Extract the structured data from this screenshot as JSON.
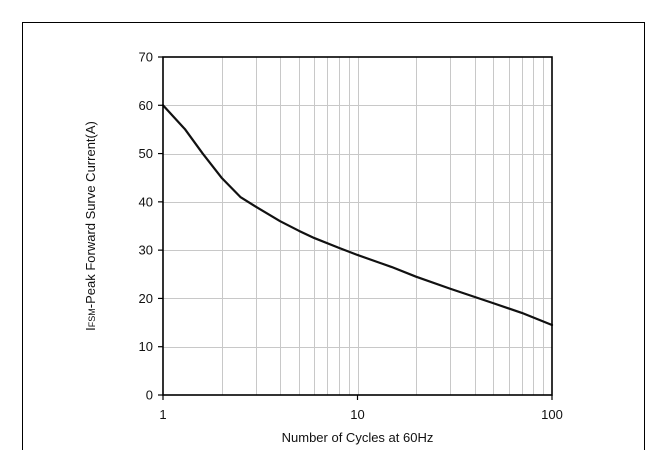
{
  "chart_data": {
    "type": "line",
    "title": "",
    "xlabel": "Number of Cycles at 60Hz",
    "ylabel_main": "I",
    "ylabel_sub": "FSM",
    "ylabel_rest": "-Peak Forward Surve Current(A)",
    "x_scale": "log",
    "xlim": [
      1,
      100
    ],
    "ylim": [
      0,
      70
    ],
    "x_ticks": [
      1,
      10,
      100
    ],
    "x_tick_labels": [
      "1",
      "10",
      "100"
    ],
    "y_ticks": [
      0,
      10,
      20,
      30,
      40,
      50,
      60,
      70
    ],
    "y_tick_labels": [
      "0",
      "10",
      "20",
      "30",
      "40",
      "50",
      "60",
      "70"
    ],
    "grid": true,
    "series": [
      {
        "x": [
          1,
          1.3,
          1.6,
          2,
          2.5,
          3,
          4,
          5,
          6,
          8,
          10,
          15,
          20,
          30,
          50,
          70,
          100
        ],
        "y": [
          60,
          55,
          50,
          45,
          41,
          39,
          36,
          34,
          32.5,
          30.5,
          29,
          26.5,
          24.5,
          22,
          19,
          17,
          14.5
        ]
      }
    ]
  }
}
